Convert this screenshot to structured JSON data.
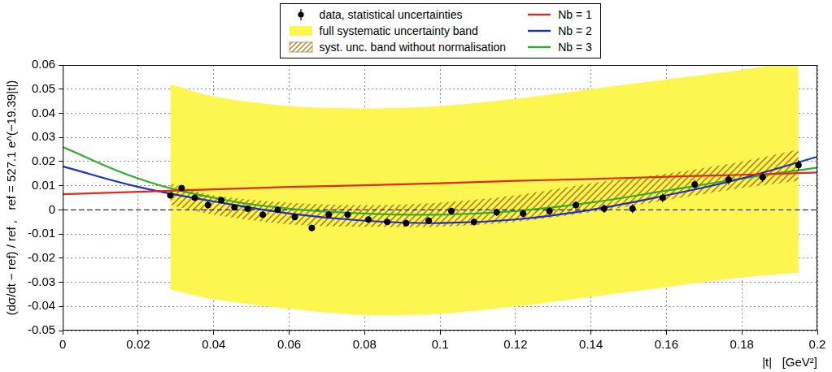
{
  "chart_data": {
    "type": "line",
    "y_label": "(dσ/dt − ref) / ref ,   ref = 527.1 e^(−19.39|t|)",
    "x_label": "|t|   [GeV²]",
    "xlim": [
      0,
      0.2
    ],
    "xticks": [
      0,
      0.02,
      0.04,
      0.06,
      0.08,
      0.1,
      0.12,
      0.14,
      0.16,
      0.18,
      0.2
    ],
    "ylim": [
      -0.05,
      0.06
    ],
    "yticks": [
      -0.05,
      -0.04,
      -0.03,
      -0.02,
      -0.01,
      0,
      0.01,
      0.02,
      0.03,
      0.04,
      0.05,
      0.06
    ],
    "grid": true,
    "legend": "top",
    "reference_line": {
      "y": 0,
      "color": "#000000",
      "line_style": "dashed"
    },
    "series": [
      {
        "name": "data, statistical uncertainties",
        "type": "scatter",
        "color": "#000000",
        "marker": "circle",
        "x": [
          0.0285,
          0.0315,
          0.035,
          0.0385,
          0.042,
          0.0455,
          0.049,
          0.053,
          0.057,
          0.0615,
          0.066,
          0.0705,
          0.0755,
          0.081,
          0.086,
          0.091,
          0.097,
          0.103,
          0.109,
          0.115,
          0.122,
          0.129,
          0.136,
          0.1435,
          0.151,
          0.159,
          0.1675,
          0.1765,
          0.1855,
          0.195
        ],
        "values": [
          0.006,
          0.009,
          0.005,
          0.002,
          0.004,
          0.001,
          0.0005,
          -0.002,
          0.0,
          -0.003,
          -0.0075,
          -0.002,
          -0.002,
          -0.004,
          -0.005,
          -0.0055,
          -0.0045,
          -0.0005,
          -0.005,
          -0.001,
          -0.0015,
          -0.0005,
          0.002,
          0.0005,
          0.0005,
          0.005,
          0.0105,
          0.0125,
          0.0135,
          0.0185
        ],
        "errors": [
          0.001,
          0.001,
          0.001,
          0.001,
          0.001,
          0.001,
          0.001,
          0.0012,
          0.0012,
          0.0012,
          0.0013,
          0.0013,
          0.0013,
          0.0013,
          0.0013,
          0.0014,
          0.0014,
          0.0014,
          0.0015,
          0.0015,
          0.0015,
          0.0016,
          0.0016,
          0.0017,
          0.0018,
          0.0018,
          0.0019,
          0.002,
          0.002,
          0.0021
        ]
      },
      {
        "name": "full systematic uncertainty band",
        "type": "band",
        "color": "#fdf650",
        "x": [
          0.0285,
          0.04,
          0.06,
          0.08,
          0.1,
          0.12,
          0.14,
          0.16,
          0.18,
          0.195
        ],
        "upper": [
          0.052,
          0.047,
          0.043,
          0.042,
          0.043,
          0.046,
          0.05,
          0.054,
          0.058,
          0.062
        ],
        "lower": [
          -0.033,
          -0.037,
          -0.041,
          -0.0435,
          -0.043,
          -0.04,
          -0.036,
          -0.032,
          -0.028,
          -0.026
        ]
      },
      {
        "name": "syst. unc. band without normalisation",
        "type": "band",
        "color": "#b5832a",
        "line_style": "hatched",
        "x": [
          0.0285,
          0.04,
          0.06,
          0.08,
          0.1,
          0.12,
          0.14,
          0.16,
          0.18,
          0.195
        ],
        "upper": [
          0.011,
          0.006,
          0.003,
          0.002,
          0.003,
          0.006,
          0.011,
          0.015,
          0.02,
          0.025
        ],
        "lower": [
          0.002,
          -0.002,
          -0.006,
          -0.007,
          -0.007,
          -0.005,
          -0.001,
          0.004,
          0.009,
          0.012
        ]
      },
      {
        "name": "Nb = 1",
        "type": "line",
        "color": "#e02a1e",
        "line_style": "solid",
        "x": [
          0,
          0.02,
          0.04,
          0.06,
          0.08,
          0.1,
          0.12,
          0.14,
          0.16,
          0.18,
          0.2
        ],
        "values": [
          0.0065,
          0.0075,
          0.0085,
          0.0095,
          0.0102,
          0.011,
          0.012,
          0.0128,
          0.0137,
          0.0145,
          0.0155
        ]
      },
      {
        "name": "Nb = 2",
        "type": "line",
        "color": "#1f2fc4",
        "line_style": "solid",
        "x": [
          0,
          0.02,
          0.04,
          0.06,
          0.08,
          0.1,
          0.12,
          0.14,
          0.16,
          0.18,
          0.2
        ],
        "values": [
          0.018,
          0.0095,
          0.0035,
          -0.0015,
          -0.0045,
          -0.0055,
          -0.004,
          0.0,
          0.006,
          0.013,
          0.022
        ]
      },
      {
        "name": "Nb = 3",
        "type": "line",
        "color": "#2eb02e",
        "line_style": "solid",
        "x": [
          0,
          0.02,
          0.04,
          0.06,
          0.08,
          0.1,
          0.12,
          0.14,
          0.16,
          0.18,
          0.2
        ],
        "values": [
          0.026,
          0.013,
          0.005,
          0.0005,
          -0.0015,
          -0.002,
          -0.0005,
          0.003,
          0.008,
          0.013,
          0.0175
        ]
      }
    ]
  }
}
